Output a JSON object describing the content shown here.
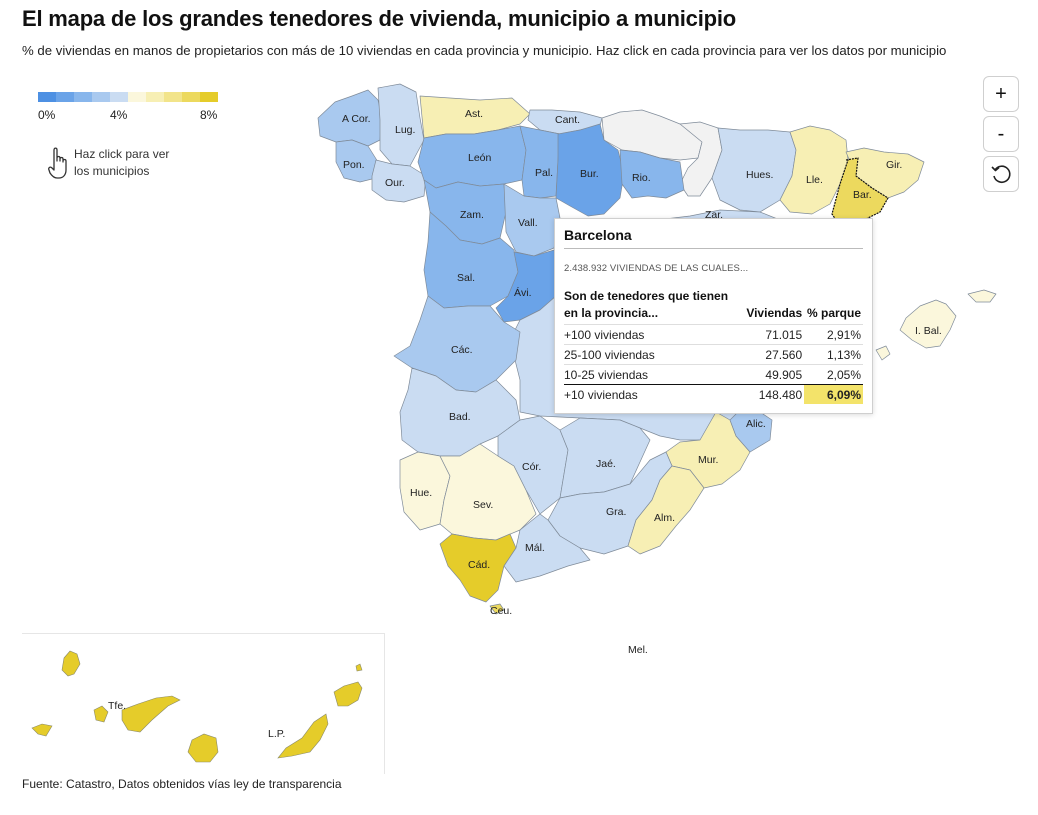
{
  "title": "El mapa de los grandes tenedores de vivienda, municipio a municipio",
  "subtitle": "% de viviendas en manos de propietarios con más de 10 viviendas en cada provincia y municipio. Haz click en cada provincia para ver los datos por municipio",
  "legend": {
    "colors": [
      "#4d90e3",
      "#6aa3e8",
      "#88b6ec",
      "#a9c9ef",
      "#cadcf2",
      "#fbf7dc",
      "#f7efb4",
      "#f2e48a",
      "#ecd95e",
      "#e5cc2a"
    ],
    "labels": [
      "0%",
      "4%",
      "8%"
    ]
  },
  "hint": {
    "text": "Haz click para ver los municipios",
    "icon": "hand-pointer-icon"
  },
  "zoom": {
    "in": "+",
    "out": "-",
    "reset_icon": "reset-icon"
  },
  "provinces": {
    "acor": "A Cor.",
    "lug": "Lug.",
    "ast": "Ast.",
    "cant": "Cant.",
    "pon": "Pon.",
    "our": "Our.",
    "leon": "León",
    "pal": "Pal.",
    "bur": "Bur.",
    "rio": "Rio.",
    "hues": "Hues.",
    "lle": "Lle.",
    "gir": "Gir.",
    "bar": "Bar.",
    "zam": "Zam.",
    "vall": "Vall.",
    "zar": "Zar.",
    "sal": "Sal.",
    "avi": "Ávi.",
    "cac": "Các.",
    "bad": "Bad.",
    "ibal": "I. Bal.",
    "alic": "Alic.",
    "mur": "Mur.",
    "hue": "Hue.",
    "sev": "Sev.",
    "cor": "Cór.",
    "jae": "Jaé.",
    "gra": "Gra.",
    "alm": "Alm.",
    "cad": "Cád.",
    "mal": "Mál.",
    "ceu": "Ceu.",
    "mel": "Mel.",
    "tfe": "Tfe.",
    "lp": "L.P."
  },
  "tooltip": {
    "province": "Barcelona",
    "total": "2.438.932 VIVIENDAS DE LAS CUALES...",
    "headers": [
      "Son de tenedores que tienen en la provincia...",
      "Viviendas",
      "% parque"
    ],
    "rows": [
      {
        "label": "+100 viviendas",
        "viviendas": "71.015",
        "pct": "2,91%"
      },
      {
        "label": "25-100 viviendas",
        "viviendas": "27.560",
        "pct": "1,13%"
      },
      {
        "label": "10-25 viviendas",
        "viviendas": "49.905",
        "pct": "2,05%"
      }
    ],
    "total_row": {
      "label": "+10 viviendas",
      "viviendas": "148.480",
      "pct": "6,09%"
    }
  },
  "source": "Fuente: Catastro, Datos obtenidos vías ley de transparencia"
}
